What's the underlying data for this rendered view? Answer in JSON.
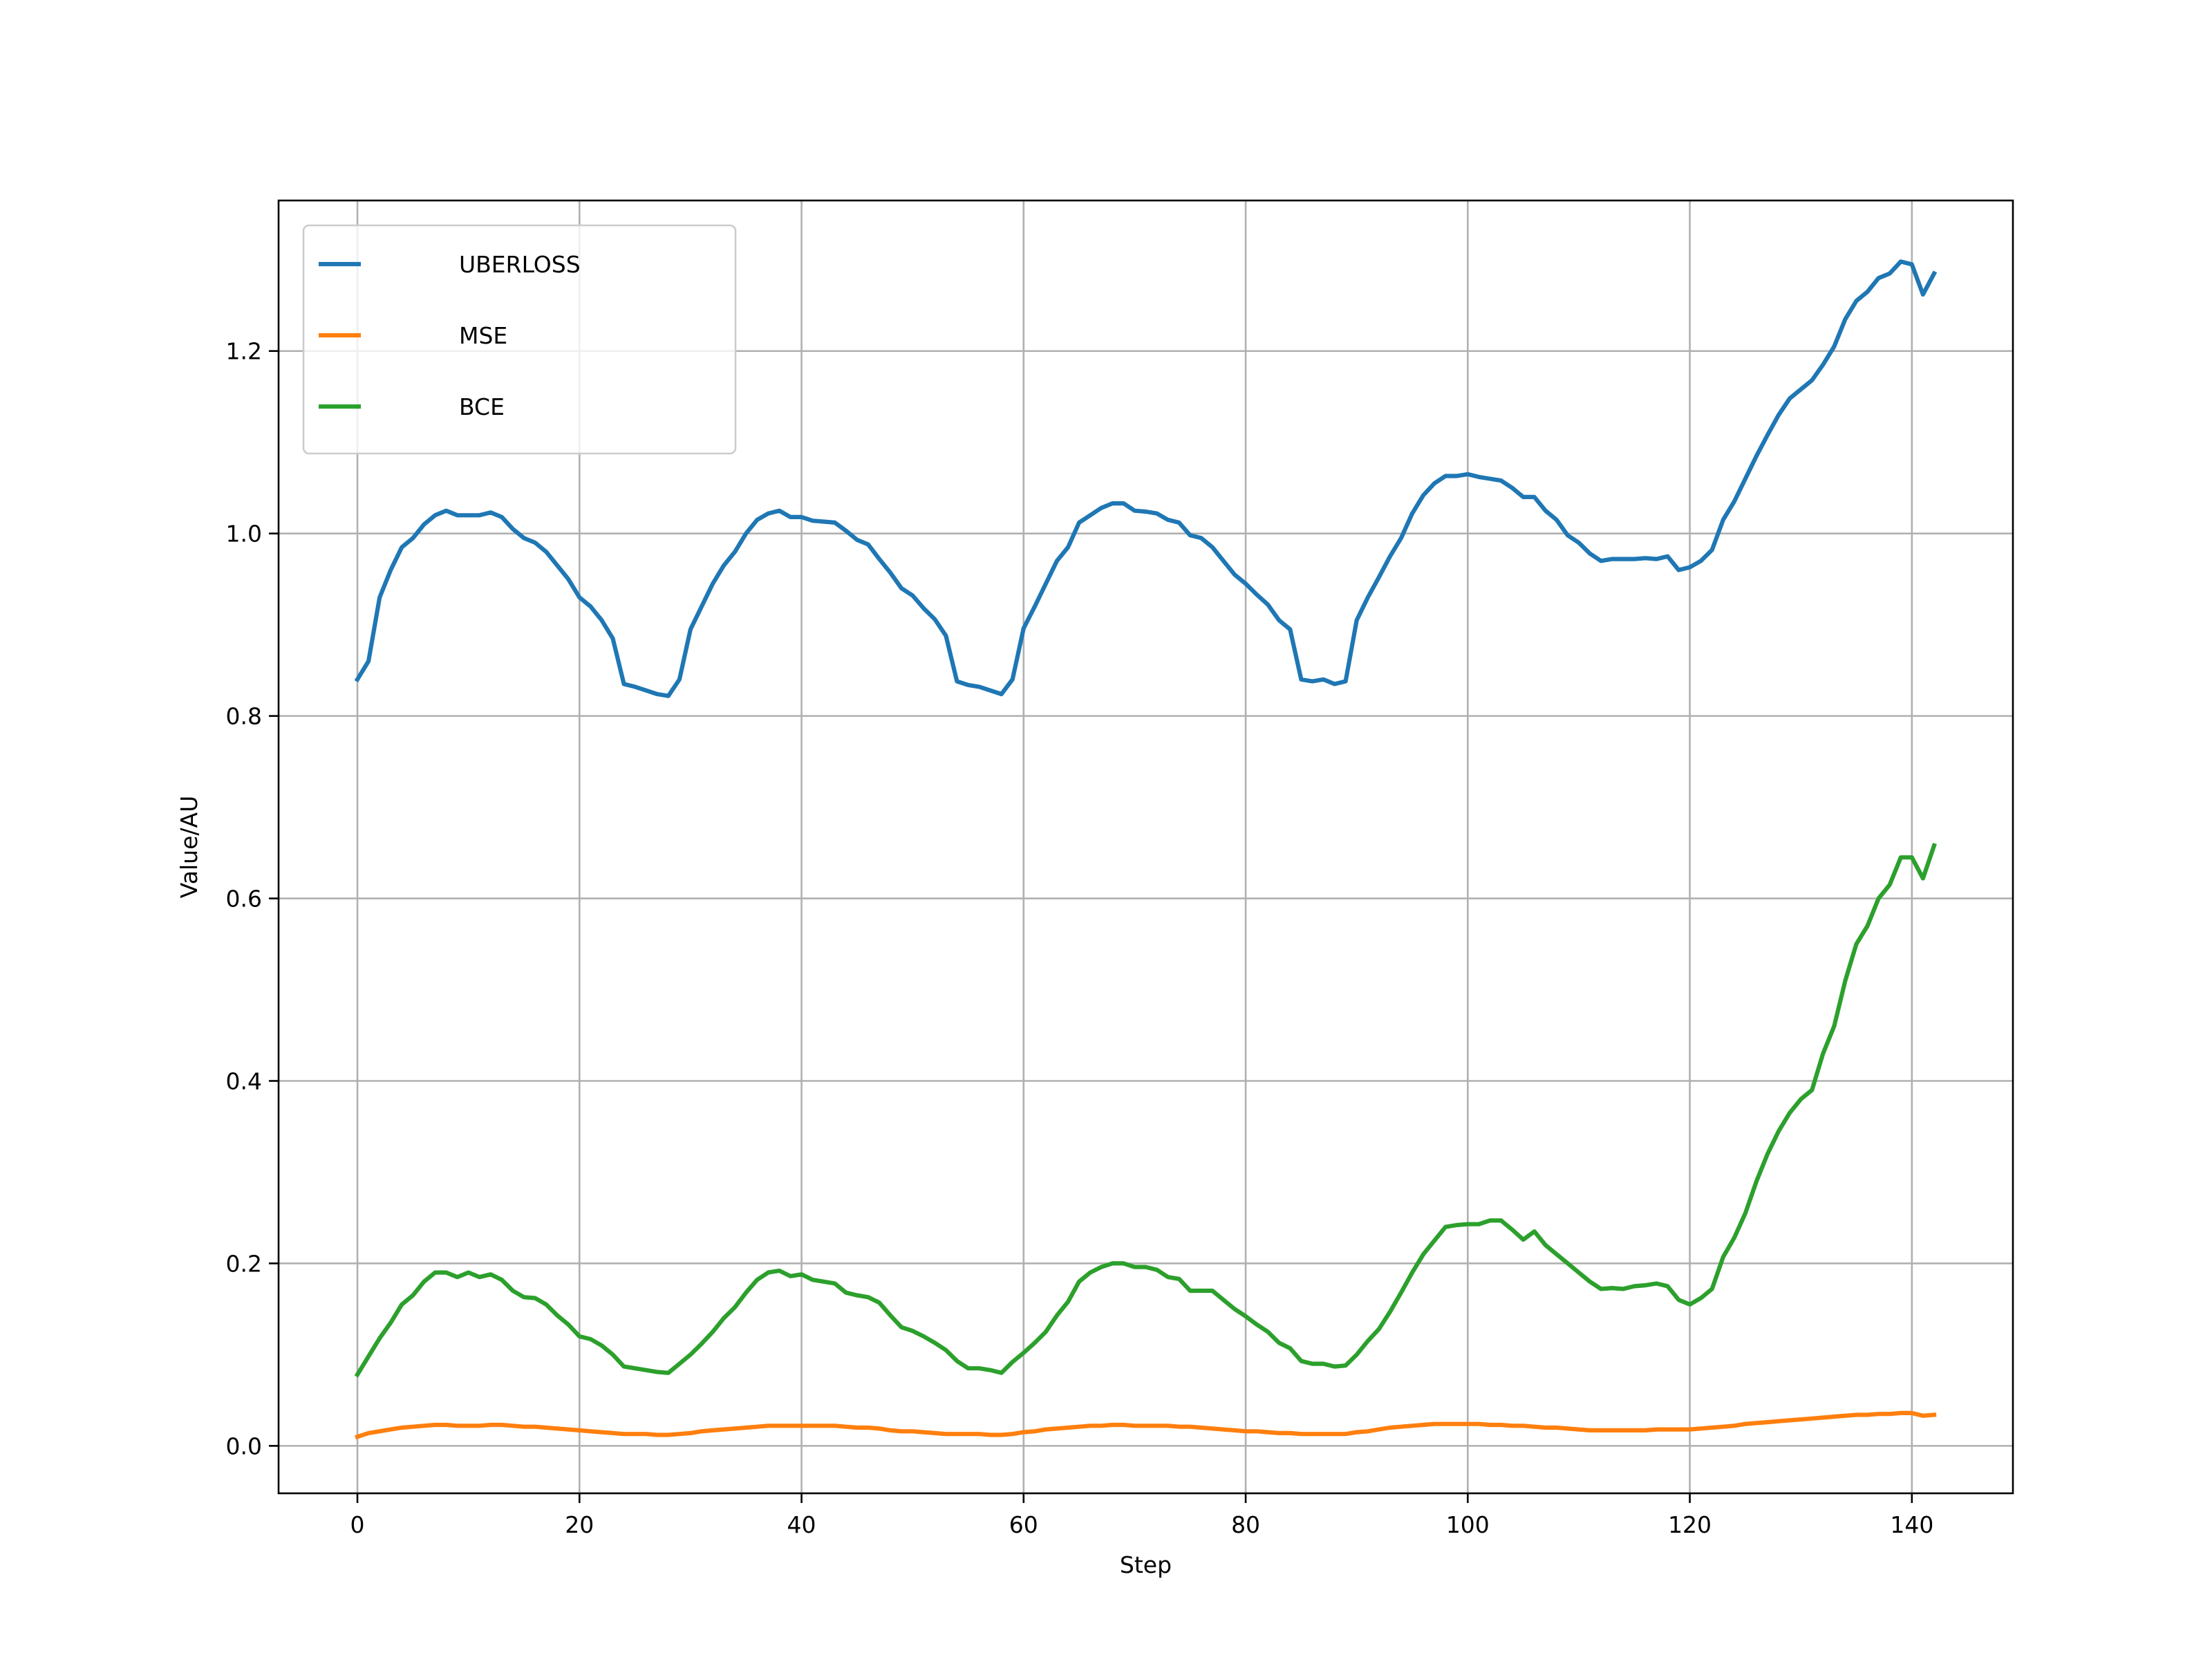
{
  "chart_data": {
    "type": "line",
    "title": "",
    "xlabel": "Step",
    "ylabel": "Value/AU",
    "xlim": [
      -7.1,
      149.1
    ],
    "ylim": [
      -0.052,
      1.365
    ],
    "xticks": [
      0,
      20,
      40,
      60,
      80,
      100,
      120,
      140
    ],
    "xtick_labels": [
      "0",
      "20",
      "40",
      "60",
      "80",
      "100",
      "120",
      "140"
    ],
    "yticks": [
      0.0,
      0.2,
      0.4,
      0.6,
      0.8,
      1.0,
      1.2
    ],
    "ytick_labels": [
      "0.0",
      "0.2",
      "0.4",
      "0.6",
      "0.8",
      "1.0",
      "1.2"
    ],
    "grid": true,
    "legend_position": "upper-left",
    "x": [
      0,
      1,
      2,
      3,
      4,
      5,
      6,
      7,
      8,
      9,
      10,
      11,
      12,
      13,
      14,
      15,
      16,
      17,
      18,
      19,
      20,
      21,
      22,
      23,
      24,
      25,
      26,
      27,
      28,
      29,
      30,
      31,
      32,
      33,
      34,
      35,
      36,
      37,
      38,
      39,
      40,
      41,
      42,
      43,
      44,
      45,
      46,
      47,
      48,
      49,
      50,
      51,
      52,
      53,
      54,
      55,
      56,
      57,
      58,
      59,
      60,
      61,
      62,
      63,
      64,
      65,
      66,
      67,
      68,
      69,
      70,
      71,
      72,
      73,
      74,
      75,
      76,
      77,
      78,
      79,
      80,
      81,
      82,
      83,
      84,
      85,
      86,
      87,
      88,
      89,
      90,
      91,
      92,
      93,
      94,
      95,
      96,
      97,
      98,
      99,
      100,
      101,
      102,
      103,
      104,
      105,
      106,
      107,
      108,
      109,
      110,
      111,
      112,
      113,
      114,
      115,
      116,
      117,
      118,
      119,
      120,
      121,
      122,
      123,
      124,
      125,
      126,
      127,
      128,
      129,
      130,
      131,
      132,
      133,
      134,
      135,
      136,
      137,
      138,
      139,
      140,
      141,
      142
    ],
    "series": [
      {
        "name": "UBERLOSS",
        "color": "#1f77b4",
        "values": [
          0.84,
          0.86,
          0.93,
          0.96,
          0.985,
          0.995,
          1.01,
          1.02,
          1.025,
          1.02,
          1.02,
          1.02,
          1.023,
          1.018,
          1.005,
          0.995,
          0.99,
          0.98,
          0.965,
          0.95,
          0.93,
          0.92,
          0.905,
          0.885,
          0.835,
          0.832,
          0.828,
          0.824,
          0.822,
          0.84,
          0.895,
          0.92,
          0.945,
          0.965,
          0.98,
          1.0,
          1.015,
          1.022,
          1.025,
          1.018,
          1.018,
          1.014,
          1.013,
          1.012,
          1.003,
          0.993,
          0.988,
          0.972,
          0.957,
          0.94,
          0.932,
          0.918,
          0.906,
          0.888,
          0.838,
          0.834,
          0.832,
          0.828,
          0.824,
          0.84,
          0.896,
          0.92,
          0.945,
          0.97,
          0.985,
          1.012,
          1.02,
          1.028,
          1.033,
          1.033,
          1.025,
          1.024,
          1.022,
          1.015,
          1.012,
          0.998,
          0.995,
          0.985,
          0.97,
          0.955,
          0.945,
          0.933,
          0.922,
          0.905,
          0.895,
          0.84,
          0.838,
          0.84,
          0.835,
          0.838,
          0.905,
          0.93,
          0.952,
          0.975,
          0.995,
          1.022,
          1.042,
          1.055,
          1.063,
          1.063,
          1.065,
          1.062,
          1.06,
          1.058,
          1.05,
          1.04,
          1.04,
          1.025,
          1.015,
          0.998,
          0.99,
          0.978,
          0.97,
          0.972,
          0.972,
          0.972,
          0.973,
          0.972,
          0.975,
          0.96,
          0.963,
          0.97,
          0.982,
          1.015,
          1.035,
          1.06,
          1.085,
          1.108,
          1.13,
          1.148,
          1.158,
          1.168,
          1.185,
          1.205,
          1.235,
          1.255,
          1.265,
          1.28,
          1.285,
          1.298,
          1.295,
          1.262,
          1.285
        ]
      },
      {
        "name": "MSE",
        "color": "#ff7f0e",
        "values": [
          0.01,
          0.014,
          0.016,
          0.018,
          0.02,
          0.021,
          0.022,
          0.023,
          0.023,
          0.022,
          0.022,
          0.022,
          0.023,
          0.023,
          0.022,
          0.021,
          0.021,
          0.02,
          0.019,
          0.018,
          0.017,
          0.016,
          0.015,
          0.014,
          0.013,
          0.013,
          0.013,
          0.012,
          0.012,
          0.013,
          0.014,
          0.016,
          0.017,
          0.018,
          0.019,
          0.02,
          0.021,
          0.022,
          0.022,
          0.022,
          0.022,
          0.022,
          0.022,
          0.022,
          0.021,
          0.02,
          0.02,
          0.019,
          0.017,
          0.016,
          0.016,
          0.015,
          0.014,
          0.013,
          0.013,
          0.013,
          0.013,
          0.012,
          0.012,
          0.013,
          0.015,
          0.016,
          0.018,
          0.019,
          0.02,
          0.021,
          0.022,
          0.022,
          0.023,
          0.023,
          0.022,
          0.022,
          0.022,
          0.022,
          0.021,
          0.021,
          0.02,
          0.019,
          0.018,
          0.017,
          0.016,
          0.016,
          0.015,
          0.014,
          0.014,
          0.013,
          0.013,
          0.013,
          0.013,
          0.013,
          0.015,
          0.016,
          0.018,
          0.02,
          0.021,
          0.022,
          0.023,
          0.024,
          0.024,
          0.024,
          0.024,
          0.024,
          0.023,
          0.023,
          0.022,
          0.022,
          0.021,
          0.02,
          0.02,
          0.019,
          0.018,
          0.017,
          0.017,
          0.017,
          0.017,
          0.017,
          0.017,
          0.018,
          0.018,
          0.018,
          0.018,
          0.019,
          0.02,
          0.021,
          0.022,
          0.024,
          0.025,
          0.026,
          0.027,
          0.028,
          0.029,
          0.03,
          0.031,
          0.032,
          0.033,
          0.034,
          0.034,
          0.035,
          0.035,
          0.036,
          0.036,
          0.033,
          0.034
        ]
      },
      {
        "name": "BCE",
        "color": "#2ca02c",
        "values": [
          0.078,
          0.098,
          0.118,
          0.135,
          0.155,
          0.165,
          0.18,
          0.19,
          0.19,
          0.185,
          0.19,
          0.185,
          0.188,
          0.182,
          0.17,
          0.163,
          0.162,
          0.155,
          0.143,
          0.133,
          0.12,
          0.117,
          0.11,
          0.1,
          0.087,
          0.085,
          0.083,
          0.081,
          0.08,
          0.09,
          0.1,
          0.112,
          0.125,
          0.14,
          0.152,
          0.168,
          0.182,
          0.19,
          0.192,
          0.186,
          0.188,
          0.182,
          0.18,
          0.178,
          0.168,
          0.165,
          0.163,
          0.157,
          0.143,
          0.13,
          0.126,
          0.12,
          0.113,
          0.105,
          0.093,
          0.085,
          0.085,
          0.083,
          0.08,
          0.092,
          0.102,
          0.113,
          0.125,
          0.143,
          0.158,
          0.18,
          0.19,
          0.196,
          0.2,
          0.2,
          0.196,
          0.196,
          0.193,
          0.185,
          0.183,
          0.17,
          0.17,
          0.17,
          0.16,
          0.15,
          0.142,
          0.133,
          0.125,
          0.113,
          0.107,
          0.093,
          0.09,
          0.09,
          0.087,
          0.088,
          0.1,
          0.115,
          0.128,
          0.147,
          0.168,
          0.19,
          0.21,
          0.225,
          0.24,
          0.242,
          0.243,
          0.243,
          0.247,
          0.247,
          0.237,
          0.226,
          0.235,
          0.22,
          0.21,
          0.2,
          0.19,
          0.18,
          0.172,
          0.173,
          0.172,
          0.175,
          0.176,
          0.178,
          0.175,
          0.16,
          0.155,
          0.162,
          0.172,
          0.207,
          0.228,
          0.255,
          0.29,
          0.32,
          0.345,
          0.365,
          0.38,
          0.39,
          0.43,
          0.46,
          0.51,
          0.55,
          0.57,
          0.6,
          0.615,
          0.645,
          0.645,
          0.622,
          0.658
        ]
      }
    ]
  }
}
